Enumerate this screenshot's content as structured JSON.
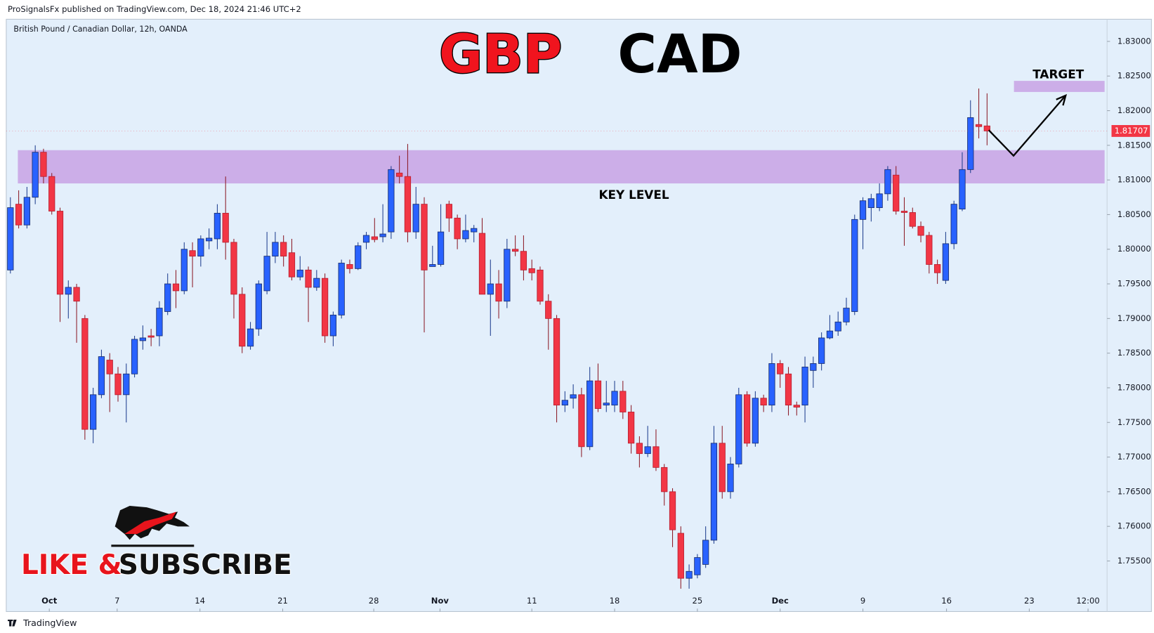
{
  "header": {
    "publisher": "ProSignalsFx published on TradingView.com, Dec 18, 2024 21:46 UTC+2",
    "brand": "TradingView"
  },
  "chart_data": {
    "type": "candlestick",
    "symbol": "British Pound / Canadian Dollar, 12h, OANDA",
    "title_parts": [
      "GBP",
      "CAD"
    ],
    "promo_parts": [
      "LIKE &",
      "SUBSCRIBE"
    ],
    "colors": {
      "up": "#2962ff",
      "down": "#f23645",
      "zone": "#c9a6e6"
    },
    "ylim": [
      1.7477,
      1.8332
    ],
    "yticks": [
      {
        "value": 1.755,
        "label": "1.75500"
      },
      {
        "value": 1.76,
        "label": "1.76000"
      },
      {
        "value": 1.765,
        "label": "1.76500"
      },
      {
        "value": 1.77,
        "label": "1.77000"
      },
      {
        "value": 1.775,
        "label": "1.77500"
      },
      {
        "value": 1.78,
        "label": "1.78000"
      },
      {
        "value": 1.785,
        "label": "1.78500"
      },
      {
        "value": 1.79,
        "label": "1.79000"
      },
      {
        "value": 1.795,
        "label": "1.79500"
      },
      {
        "value": 1.8,
        "label": "1.80000"
      },
      {
        "value": 1.805,
        "label": "1.80500"
      },
      {
        "value": 1.81,
        "label": "1.81000"
      },
      {
        "value": 1.815,
        "label": "1.81500"
      },
      {
        "value": 1.82,
        "label": "1.82000"
      },
      {
        "value": 1.825,
        "label": "1.82500"
      },
      {
        "value": 1.83,
        "label": "1.83000"
      }
    ],
    "xlim": [
      -0.5,
      132.5
    ],
    "xticks": [
      {
        "value": 4.7,
        "label": "Oct"
      },
      {
        "value": 12.9,
        "label": "7"
      },
      {
        "value": 22.9,
        "label": "14"
      },
      {
        "value": 32.9,
        "label": "21"
      },
      {
        "value": 43.9,
        "label": "28"
      },
      {
        "value": 51.9,
        "label": "Nov"
      },
      {
        "value": 63,
        "label": "11"
      },
      {
        "value": 73,
        "label": "18"
      },
      {
        "value": 83,
        "label": "25"
      },
      {
        "value": 93,
        "label": "Dec"
      },
      {
        "value": 103,
        "label": "9"
      },
      {
        "value": 113.1,
        "label": "16"
      },
      {
        "value": 123.1,
        "label": "23"
      },
      {
        "value": 130.2,
        "label": "12:00"
      }
    ],
    "last_price": {
      "value": 1.81707,
      "label": "1.81707"
    },
    "zones": [
      {
        "name": "KEY LEVEL",
        "top": 1.8143,
        "bottom": 1.8095,
        "start": 0.9,
        "end": 132.2
      },
      {
        "name": "TARGET",
        "top": 1.8243,
        "bottom": 1.8227,
        "start": 121.25,
        "end": 132.2
      }
    ],
    "projection": [
      {
        "x": 118.2,
        "y": 1.8172
      },
      {
        "x": 121.2,
        "y": 1.8135
      },
      {
        "x": 127.5,
        "y": 1.8222
      }
    ],
    "candles": [
      {
        "open": 1.797,
        "high": 1.8075,
        "low": 1.7965,
        "close": 1.806
      },
      {
        "open": 1.8065,
        "high": 1.8085,
        "low": 1.803,
        "close": 1.8035
      },
      {
        "open": 1.8035,
        "high": 1.809,
        "low": 1.803,
        "close": 1.8075
      },
      {
        "open": 1.8075,
        "high": 1.815,
        "low": 1.8065,
        "close": 1.814
      },
      {
        "open": 1.814,
        "high": 1.8145,
        "low": 1.8095,
        "close": 1.8105
      },
      {
        "open": 1.8105,
        "high": 1.811,
        "low": 1.805,
        "close": 1.8055
      },
      {
        "open": 1.8055,
        "high": 1.806,
        "low": 1.7895,
        "close": 1.7935
      },
      {
        "open": 1.7935,
        "high": 1.7955,
        "low": 1.79,
        "close": 1.7945
      },
      {
        "open": 1.7945,
        "high": 1.795,
        "low": 1.7865,
        "close": 1.7925
      },
      {
        "open": 1.79,
        "high": 1.7905,
        "low": 1.7725,
        "close": 1.774
      },
      {
        "open": 1.774,
        "high": 1.78,
        "low": 1.772,
        "close": 1.779
      },
      {
        "open": 1.779,
        "high": 1.7855,
        "low": 1.7785,
        "close": 1.7845
      },
      {
        "open": 1.784,
        "high": 1.785,
        "low": 1.7765,
        "close": 1.782
      },
      {
        "open": 1.782,
        "high": 1.783,
        "low": 1.778,
        "close": 1.779
      },
      {
        "open": 1.779,
        "high": 1.7835,
        "low": 1.775,
        "close": 1.782
      },
      {
        "open": 1.782,
        "high": 1.7875,
        "low": 1.7815,
        "close": 1.787
      },
      {
        "open": 1.7868,
        "high": 1.789,
        "low": 1.7855,
        "close": 1.7872
      },
      {
        "open": 1.7875,
        "high": 1.7885,
        "low": 1.786,
        "close": 1.7873
      },
      {
        "open": 1.7875,
        "high": 1.7925,
        "low": 1.786,
        "close": 1.7915
      },
      {
        "open": 1.791,
        "high": 1.7965,
        "low": 1.7905,
        "close": 1.795
      },
      {
        "open": 1.795,
        "high": 1.797,
        "low": 1.7915,
        "close": 1.794
      },
      {
        "open": 1.794,
        "high": 1.801,
        "low": 1.7935,
        "close": 1.8
      },
      {
        "open": 1.7998,
        "high": 1.801,
        "low": 1.7945,
        "close": 1.799
      },
      {
        "open": 1.799,
        "high": 1.802,
        "low": 1.7975,
        "close": 1.8015
      },
      {
        "open": 1.8012,
        "high": 1.803,
        "low": 1.8,
        "close": 1.8016
      },
      {
        "open": 1.8015,
        "high": 1.8065,
        "low": 1.8,
        "close": 1.8052
      },
      {
        "open": 1.8052,
        "high": 1.8105,
        "low": 1.7985,
        "close": 1.801
      },
      {
        "open": 1.801,
        "high": 1.8015,
        "low": 1.79,
        "close": 1.7935
      },
      {
        "open": 1.7935,
        "high": 1.7945,
        "low": 1.785,
        "close": 1.786
      },
      {
        "open": 1.786,
        "high": 1.7895,
        "low": 1.7855,
        "close": 1.7885
      },
      {
        "open": 1.7885,
        "high": 1.7955,
        "low": 1.7875,
        "close": 1.795
      },
      {
        "open": 1.794,
        "high": 1.8025,
        "low": 1.7935,
        "close": 1.799
      },
      {
        "open": 1.799,
        "high": 1.8025,
        "low": 1.798,
        "close": 1.801
      },
      {
        "open": 1.801,
        "high": 1.802,
        "low": 1.7975,
        "close": 1.799
      },
      {
        "open": 1.7995,
        "high": 1.8015,
        "low": 1.7955,
        "close": 1.796
      },
      {
        "open": 1.796,
        "high": 1.799,
        "low": 1.7955,
        "close": 1.797
      },
      {
        "open": 1.797,
        "high": 1.7975,
        "low": 1.7895,
        "close": 1.7945
      },
      {
        "open": 1.7945,
        "high": 1.797,
        "low": 1.794,
        "close": 1.7958
      },
      {
        "open": 1.7958,
        "high": 1.7965,
        "low": 1.7865,
        "close": 1.7875
      },
      {
        "open": 1.7875,
        "high": 1.791,
        "low": 1.786,
        "close": 1.7905
      },
      {
        "open": 1.7905,
        "high": 1.7985,
        "low": 1.79,
        "close": 1.798
      },
      {
        "open": 1.7978,
        "high": 1.7985,
        "low": 1.7965,
        "close": 1.7972
      },
      {
        "open": 1.7972,
        "high": 1.801,
        "low": 1.797,
        "close": 1.8005
      },
      {
        "open": 1.801,
        "high": 1.8025,
        "low": 1.8,
        "close": 1.802
      },
      {
        "open": 1.8018,
        "high": 1.8045,
        "low": 1.801,
        "close": 1.8014
      },
      {
        "open": 1.8018,
        "high": 1.8065,
        "low": 1.801,
        "close": 1.8022
      },
      {
        "open": 1.8025,
        "high": 1.812,
        "low": 1.8015,
        "close": 1.8115
      },
      {
        "open": 1.811,
        "high": 1.8135,
        "low": 1.8095,
        "close": 1.8105
      },
      {
        "open": 1.8105,
        "high": 1.8152,
        "low": 1.801,
        "close": 1.8025
      },
      {
        "open": 1.8025,
        "high": 1.809,
        "low": 1.8015,
        "close": 1.8065
      },
      {
        "open": 1.8065,
        "high": 1.8075,
        "low": 1.788,
        "close": 1.797
      },
      {
        "open": 1.7975,
        "high": 1.8005,
        "low": 1.7975,
        "close": 1.7978
      },
      {
        "open": 1.7978,
        "high": 1.8065,
        "low": 1.7975,
        "close": 1.8025
      },
      {
        "open": 1.8065,
        "high": 1.807,
        "low": 1.8025,
        "close": 1.8045
      },
      {
        "open": 1.8045,
        "high": 1.805,
        "low": 1.8,
        "close": 1.8015
      },
      {
        "open": 1.8015,
        "high": 1.805,
        "low": 1.801,
        "close": 1.8027
      },
      {
        "open": 1.8025,
        "high": 1.8035,
        "low": 1.801,
        "close": 1.803
      },
      {
        "open": 1.8023,
        "high": 1.8045,
        "low": 1.7935,
        "close": 1.7935
      },
      {
        "open": 1.7935,
        "high": 1.7985,
        "low": 1.7875,
        "close": 1.795
      },
      {
        "open": 1.795,
        "high": 1.797,
        "low": 1.79,
        "close": 1.7925
      },
      {
        "open": 1.7925,
        "high": 1.8015,
        "low": 1.7915,
        "close": 1.8
      },
      {
        "open": 1.8,
        "high": 1.802,
        "low": 1.799,
        "close": 1.7997
      },
      {
        "open": 1.7997,
        "high": 1.802,
        "low": 1.7955,
        "close": 1.797
      },
      {
        "open": 1.7972,
        "high": 1.7985,
        "low": 1.7955,
        "close": 1.7966
      },
      {
        "open": 1.797,
        "high": 1.7975,
        "low": 1.792,
        "close": 1.7925
      },
      {
        "open": 1.7925,
        "high": 1.7935,
        "low": 1.7855,
        "close": 1.79
      },
      {
        "open": 1.79,
        "high": 1.7905,
        "low": 1.775,
        "close": 1.7775
      },
      {
        "open": 1.7775,
        "high": 1.7795,
        "low": 1.7765,
        "close": 1.7782
      },
      {
        "open": 1.7785,
        "high": 1.7805,
        "low": 1.777,
        "close": 1.779
      },
      {
        "open": 1.779,
        "high": 1.78,
        "low": 1.77,
        "close": 1.7715
      },
      {
        "open": 1.7715,
        "high": 1.783,
        "low": 1.771,
        "close": 1.781
      },
      {
        "open": 1.781,
        "high": 1.7835,
        "low": 1.7765,
        "close": 1.777
      },
      {
        "open": 1.7775,
        "high": 1.781,
        "low": 1.7765,
        "close": 1.7778
      },
      {
        "open": 1.7775,
        "high": 1.781,
        "low": 1.7765,
        "close": 1.7795
      },
      {
        "open": 1.7795,
        "high": 1.781,
        "low": 1.7755,
        "close": 1.7765
      },
      {
        "open": 1.7765,
        "high": 1.7775,
        "low": 1.7705,
        "close": 1.772
      },
      {
        "open": 1.772,
        "high": 1.773,
        "low": 1.7685,
        "close": 1.7705
      },
      {
        "open": 1.7705,
        "high": 1.7745,
        "low": 1.77,
        "close": 1.7715
      },
      {
        "open": 1.7715,
        "high": 1.774,
        "low": 1.768,
        "close": 1.7685
      },
      {
        "open": 1.7685,
        "high": 1.769,
        "low": 1.763,
        "close": 1.765
      },
      {
        "open": 1.765,
        "high": 1.7655,
        "low": 1.757,
        "close": 1.7595
      },
      {
        "open": 1.759,
        "high": 1.76,
        "low": 1.751,
        "close": 1.7525
      },
      {
        "open": 1.7525,
        "high": 1.7545,
        "low": 1.751,
        "close": 1.7535
      },
      {
        "open": 1.753,
        "high": 1.756,
        "low": 1.7525,
        "close": 1.7555
      },
      {
        "open": 1.7545,
        "high": 1.76,
        "low": 1.754,
        "close": 1.758
      },
      {
        "open": 1.758,
        "high": 1.7745,
        "low": 1.7575,
        "close": 1.772
      },
      {
        "open": 1.772,
        "high": 1.7745,
        "low": 1.764,
        "close": 1.765
      },
      {
        "open": 1.765,
        "high": 1.77,
        "low": 1.764,
        "close": 1.769
      },
      {
        "open": 1.769,
        "high": 1.78,
        "low": 1.7685,
        "close": 1.779
      },
      {
        "open": 1.779,
        "high": 1.7795,
        "low": 1.7715,
        "close": 1.772
      },
      {
        "open": 1.772,
        "high": 1.7795,
        "low": 1.7715,
        "close": 1.7785
      },
      {
        "open": 1.7785,
        "high": 1.779,
        "low": 1.7765,
        "close": 1.7775
      },
      {
        "open": 1.7775,
        "high": 1.785,
        "low": 1.7765,
        "close": 1.7835
      },
      {
        "open": 1.7835,
        "high": 1.784,
        "low": 1.78,
        "close": 1.782
      },
      {
        "open": 1.782,
        "high": 1.783,
        "low": 1.776,
        "close": 1.7775
      },
      {
        "open": 1.7775,
        "high": 1.778,
        "low": 1.776,
        "close": 1.7772
      },
      {
        "open": 1.7775,
        "high": 1.7845,
        "low": 1.775,
        "close": 1.783
      },
      {
        "open": 1.7825,
        "high": 1.7845,
        "low": 1.78,
        "close": 1.7835
      },
      {
        "open": 1.7835,
        "high": 1.788,
        "low": 1.7825,
        "close": 1.7872
      },
      {
        "open": 1.7872,
        "high": 1.7905,
        "low": 1.787,
        "close": 1.7882
      },
      {
        "open": 1.7882,
        "high": 1.791,
        "low": 1.7875,
        "close": 1.7895
      },
      {
        "open": 1.7895,
        "high": 1.793,
        "low": 1.789,
        "close": 1.7915
      },
      {
        "open": 1.791,
        "high": 1.805,
        "low": 1.7905,
        "close": 1.8043
      },
      {
        "open": 1.8043,
        "high": 1.8075,
        "low": 1.8,
        "close": 1.807
      },
      {
        "open": 1.806,
        "high": 1.808,
        "low": 1.804,
        "close": 1.8073
      },
      {
        "open": 1.806,
        "high": 1.8095,
        "low": 1.8055,
        "close": 1.808
      },
      {
        "open": 1.808,
        "high": 1.812,
        "low": 1.807,
        "close": 1.8115
      },
      {
        "open": 1.8107,
        "high": 1.812,
        "low": 1.805,
        "close": 1.8055
      },
      {
        "open": 1.8055,
        "high": 1.8075,
        "low": 1.8005,
        "close": 1.8053
      },
      {
        "open": 1.8053,
        "high": 1.806,
        "low": 1.803,
        "close": 1.8033
      },
      {
        "open": 1.8033,
        "high": 1.804,
        "low": 1.801,
        "close": 1.802
      },
      {
        "open": 1.802,
        "high": 1.8025,
        "low": 1.7965,
        "close": 1.7978
      },
      {
        "open": 1.7978,
        "high": 1.7985,
        "low": 1.795,
        "close": 1.7966
      },
      {
        "open": 1.7955,
        "high": 1.8025,
        "low": 1.795,
        "close": 1.8008
      },
      {
        "open": 1.8008,
        "high": 1.807,
        "low": 1.8,
        "close": 1.8065
      },
      {
        "open": 1.8058,
        "high": 1.814,
        "low": 1.8055,
        "close": 1.8115
      },
      {
        "open": 1.8115,
        "high": 1.8215,
        "low": 1.811,
        "close": 1.819
      },
      {
        "open": 1.818,
        "high": 1.8232,
        "low": 1.816,
        "close": 1.8177
      },
      {
        "open": 1.8178,
        "high": 1.8225,
        "low": 1.815,
        "close": 1.81707
      }
    ]
  }
}
